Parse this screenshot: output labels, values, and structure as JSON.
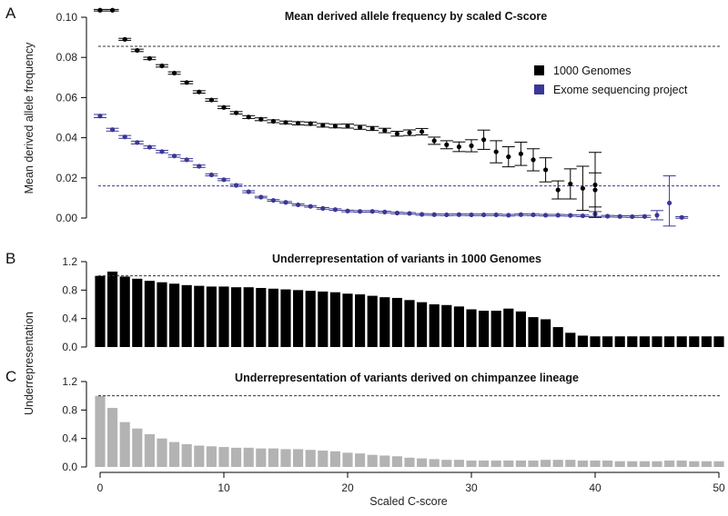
{
  "colors": {
    "kg": "#000000",
    "esp": "#3b3796",
    "chimp": "#b3b3b3",
    "axis": "#000000"
  },
  "x_axis": {
    "label": "Scaled C-score",
    "range": [
      -1,
      50
    ],
    "ticks": [
      0,
      10,
      20,
      30,
      40,
      50
    ],
    "tick_labels": [
      "0",
      "10",
      "20",
      "30",
      "40",
      "50"
    ]
  },
  "y_axis_shared_label": "Underrepresentation",
  "chart_data": [
    {
      "panel": "A",
      "type": "scatter",
      "title": "Mean derived allele frequency by scaled C-score",
      "ylabel": "Mean derived allele frequency",
      "ylim": [
        0,
        0.1
      ],
      "yticks": [
        0.0,
        0.02,
        0.04,
        0.06,
        0.08,
        0.1
      ],
      "ytick_labels": [
        "0.00",
        "0.02",
        "0.04",
        "0.06",
        "0.08",
        "0.10"
      ],
      "legend": {
        "placement": "right",
        "entries": [
          "1000 Genomes",
          "Exome sequencing project"
        ]
      },
      "reference_lines": [
        {
          "series": "1000 Genomes",
          "y": 0.0855
        },
        {
          "series": "Exome sequencing project",
          "y": 0.016
        }
      ],
      "series": [
        {
          "name": "1000 Genomes",
          "x": [
            0,
            1,
            2,
            3,
            4,
            5,
            6,
            7,
            8,
            9,
            10,
            11,
            12,
            13,
            14,
            15,
            16,
            17,
            18,
            19,
            20,
            21,
            22,
            23,
            24,
            25,
            26,
            27,
            28,
            29,
            30,
            31,
            32,
            33,
            34,
            35,
            36,
            37,
            38,
            39,
            40
          ],
          "y": [
            0.1035,
            0.1035,
            0.089,
            0.0835,
            0.0795,
            0.0758,
            0.0722,
            0.0675,
            0.0628,
            0.0588,
            0.0551,
            0.0524,
            0.0503,
            0.0492,
            0.0482,
            0.0476,
            0.0472,
            0.047,
            0.0462,
            0.0458,
            0.0458,
            0.0452,
            0.0446,
            0.0436,
            0.042,
            0.0425,
            0.043,
            0.0385,
            0.0365,
            0.0355,
            0.036,
            0.039,
            0.033,
            0.0305,
            0.032,
            0.029,
            0.024,
            0.014,
            0.017,
            0.0148,
            0.014
          ],
          "err": [
            0.0004,
            0.0004,
            0.0005,
            0.0006,
            0.0006,
            0.0006,
            0.0006,
            0.0006,
            0.0006,
            0.0006,
            0.0006,
            0.0006,
            0.0007,
            0.0007,
            0.0007,
            0.0007,
            0.0008,
            0.0008,
            0.0009,
            0.0009,
            0.001,
            0.001,
            0.001,
            0.0011,
            0.0012,
            0.0014,
            0.0016,
            0.0018,
            0.002,
            0.0024,
            0.003,
            0.0048,
            0.0055,
            0.005,
            0.0058,
            0.0055,
            0.006,
            0.0045,
            0.0075,
            0.011,
            0.0085
          ],
          "x_extra": [
            40
          ],
          "y_extra": [
            0.0165
          ],
          "err_extra": [
            0.0162
          ]
        },
        {
          "name": "Exome sequencing project",
          "x": [
            0,
            1,
            2,
            3,
            4,
            5,
            6,
            7,
            8,
            9,
            10,
            11,
            12,
            13,
            14,
            15,
            16,
            17,
            18,
            19,
            20,
            21,
            22,
            23,
            24,
            25,
            26,
            27,
            28,
            29,
            30,
            31,
            32,
            33,
            34,
            35,
            36,
            37,
            38,
            39,
            40,
            41,
            42,
            43,
            44,
            45,
            46,
            47
          ],
          "y": [
            0.0508,
            0.044,
            0.0404,
            0.0376,
            0.0353,
            0.0331,
            0.0309,
            0.029,
            0.0258,
            0.0215,
            0.0191,
            0.0163,
            0.0131,
            0.0104,
            0.0088,
            0.0078,
            0.0066,
            0.0058,
            0.0048,
            0.0042,
            0.0035,
            0.0033,
            0.0033,
            0.003,
            0.0025,
            0.0023,
            0.0018,
            0.0017,
            0.0016,
            0.0017,
            0.0016,
            0.0016,
            0.0016,
            0.0014,
            0.0017,
            0.0016,
            0.0014,
            0.0014,
            0.0013,
            0.0011,
            0.002,
            0.0009,
            0.0008,
            0.0007,
            0.0008,
            0.0014,
            0.0075,
            0.0003
          ],
          "err": [
            0.0008,
            0.0007,
            0.0007,
            0.0007,
            0.0006,
            0.0006,
            0.0006,
            0.0006,
            0.0006,
            0.0005,
            0.0005,
            0.0005,
            0.0005,
            0.0004,
            0.0004,
            0.0004,
            0.0004,
            0.0004,
            0.0004,
            0.0004,
            0.0004,
            0.0004,
            0.0004,
            0.0004,
            0.0004,
            0.0004,
            0.0004,
            0.0004,
            0.0004,
            0.0004,
            0.0004,
            0.0004,
            0.0004,
            0.0004,
            0.0004,
            0.0004,
            0.0004,
            0.0004,
            0.0004,
            0.0004,
            0.0012,
            0.0004,
            0.0004,
            0.0004,
            0.0005,
            0.0023,
            0.0135,
            0.0004
          ]
        }
      ]
    },
    {
      "panel": "B",
      "type": "bar",
      "title": "Underrepresentation of variants in 1000 Genomes",
      "ylim": [
        0,
        1.2
      ],
      "yticks": [
        0.0,
        0.4,
        0.8,
        1.2
      ],
      "ytick_labels": [
        "0.0",
        "0.4",
        "0.8",
        "1.2"
      ],
      "reference_line": 1.0,
      "x": [
        0,
        1,
        2,
        3,
        4,
        5,
        6,
        7,
        8,
        9,
        10,
        11,
        12,
        13,
        14,
        15,
        16,
        17,
        18,
        19,
        20,
        21,
        22,
        23,
        24,
        25,
        26,
        27,
        28,
        29,
        30,
        31,
        32,
        33,
        34,
        35,
        36,
        37,
        38,
        39,
        40,
        41,
        42,
        43,
        44,
        45,
        46,
        47,
        48,
        49,
        50
      ],
      "values": [
        1.0,
        1.06,
        0.99,
        0.96,
        0.93,
        0.91,
        0.89,
        0.87,
        0.86,
        0.85,
        0.85,
        0.84,
        0.84,
        0.83,
        0.82,
        0.81,
        0.8,
        0.79,
        0.78,
        0.77,
        0.75,
        0.74,
        0.72,
        0.7,
        0.69,
        0.66,
        0.63,
        0.6,
        0.59,
        0.57,
        0.53,
        0.51,
        0.51,
        0.54,
        0.5,
        0.42,
        0.39,
        0.28,
        0.2,
        0.16,
        0.15,
        0.15,
        0.15,
        0.15,
        0.15,
        0.15,
        0.15,
        0.15,
        0.15,
        0.15,
        0.15
      ]
    },
    {
      "panel": "C",
      "type": "bar",
      "title": "Underrepresentation of variants derived on chimpanzee lineage",
      "ylim": [
        0,
        1.2
      ],
      "yticks": [
        0.0,
        0.4,
        0.8,
        1.2
      ],
      "ytick_labels": [
        "0.0",
        "0.4",
        "0.8",
        "1.2"
      ],
      "reference_line": 1.0,
      "x": [
        0,
        1,
        2,
        3,
        4,
        5,
        6,
        7,
        8,
        9,
        10,
        11,
        12,
        13,
        14,
        15,
        16,
        17,
        18,
        19,
        20,
        21,
        22,
        23,
        24,
        25,
        26,
        27,
        28,
        29,
        30,
        31,
        32,
        33,
        34,
        35,
        36,
        37,
        38,
        39,
        40,
        41,
        42,
        43,
        44,
        45,
        46,
        47,
        48,
        49,
        50
      ],
      "values": [
        1.0,
        0.83,
        0.63,
        0.54,
        0.46,
        0.4,
        0.35,
        0.32,
        0.3,
        0.29,
        0.28,
        0.27,
        0.27,
        0.26,
        0.26,
        0.25,
        0.25,
        0.24,
        0.23,
        0.22,
        0.2,
        0.19,
        0.17,
        0.16,
        0.15,
        0.13,
        0.12,
        0.11,
        0.1,
        0.1,
        0.09,
        0.09,
        0.09,
        0.09,
        0.09,
        0.09,
        0.1,
        0.1,
        0.1,
        0.09,
        0.09,
        0.09,
        0.08,
        0.08,
        0.08,
        0.08,
        0.09,
        0.09,
        0.08,
        0.08,
        0.08
      ]
    }
  ]
}
